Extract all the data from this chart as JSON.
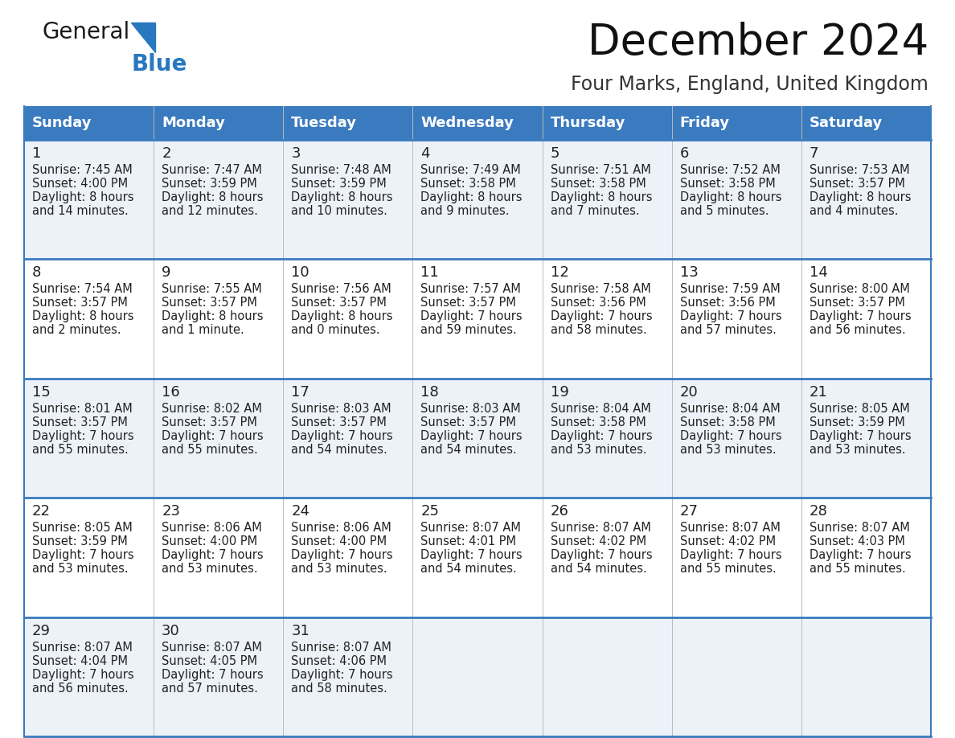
{
  "title": "December 2024",
  "subtitle": "Four Marks, England, United Kingdom",
  "header_bg_color": "#3a7abf",
  "header_text_color": "#ffffff",
  "row_bg_even": "#edf2f9",
  "row_bg_odd": "#ffffff",
  "border_color": "#3a7abf",
  "text_color": "#222222",
  "day_names": [
    "Sunday",
    "Monday",
    "Tuesday",
    "Wednesday",
    "Thursday",
    "Friday",
    "Saturday"
  ],
  "days": [
    {
      "date": 1,
      "sunrise": "7:45 AM",
      "sunset": "4:00 PM",
      "daylight_hours": 8,
      "daylight_minutes": 14
    },
    {
      "date": 2,
      "sunrise": "7:47 AM",
      "sunset": "3:59 PM",
      "daylight_hours": 8,
      "daylight_minutes": 12
    },
    {
      "date": 3,
      "sunrise": "7:48 AM",
      "sunset": "3:59 PM",
      "daylight_hours": 8,
      "daylight_minutes": 10
    },
    {
      "date": 4,
      "sunrise": "7:49 AM",
      "sunset": "3:58 PM",
      "daylight_hours": 8,
      "daylight_minutes": 9
    },
    {
      "date": 5,
      "sunrise": "7:51 AM",
      "sunset": "3:58 PM",
      "daylight_hours": 8,
      "daylight_minutes": 7
    },
    {
      "date": 6,
      "sunrise": "7:52 AM",
      "sunset": "3:58 PM",
      "daylight_hours": 8,
      "daylight_minutes": 5
    },
    {
      "date": 7,
      "sunrise": "7:53 AM",
      "sunset": "3:57 PM",
      "daylight_hours": 8,
      "daylight_minutes": 4
    },
    {
      "date": 8,
      "sunrise": "7:54 AM",
      "sunset": "3:57 PM",
      "daylight_hours": 8,
      "daylight_minutes": 2
    },
    {
      "date": 9,
      "sunrise": "7:55 AM",
      "sunset": "3:57 PM",
      "daylight_hours": 8,
      "daylight_minutes": 1
    },
    {
      "date": 10,
      "sunrise": "7:56 AM",
      "sunset": "3:57 PM",
      "daylight_hours": 8,
      "daylight_minutes": 0
    },
    {
      "date": 11,
      "sunrise": "7:57 AM",
      "sunset": "3:57 PM",
      "daylight_hours": 7,
      "daylight_minutes": 59
    },
    {
      "date": 12,
      "sunrise": "7:58 AM",
      "sunset": "3:56 PM",
      "daylight_hours": 7,
      "daylight_minutes": 58
    },
    {
      "date": 13,
      "sunrise": "7:59 AM",
      "sunset": "3:56 PM",
      "daylight_hours": 7,
      "daylight_minutes": 57
    },
    {
      "date": 14,
      "sunrise": "8:00 AM",
      "sunset": "3:57 PM",
      "daylight_hours": 7,
      "daylight_minutes": 56
    },
    {
      "date": 15,
      "sunrise": "8:01 AM",
      "sunset": "3:57 PM",
      "daylight_hours": 7,
      "daylight_minutes": 55
    },
    {
      "date": 16,
      "sunrise": "8:02 AM",
      "sunset": "3:57 PM",
      "daylight_hours": 7,
      "daylight_minutes": 55
    },
    {
      "date": 17,
      "sunrise": "8:03 AM",
      "sunset": "3:57 PM",
      "daylight_hours": 7,
      "daylight_minutes": 54
    },
    {
      "date": 18,
      "sunrise": "8:03 AM",
      "sunset": "3:57 PM",
      "daylight_hours": 7,
      "daylight_minutes": 54
    },
    {
      "date": 19,
      "sunrise": "8:04 AM",
      "sunset": "3:58 PM",
      "daylight_hours": 7,
      "daylight_minutes": 53
    },
    {
      "date": 20,
      "sunrise": "8:04 AM",
      "sunset": "3:58 PM",
      "daylight_hours": 7,
      "daylight_minutes": 53
    },
    {
      "date": 21,
      "sunrise": "8:05 AM",
      "sunset": "3:59 PM",
      "daylight_hours": 7,
      "daylight_minutes": 53
    },
    {
      "date": 22,
      "sunrise": "8:05 AM",
      "sunset": "3:59 PM",
      "daylight_hours": 7,
      "daylight_minutes": 53
    },
    {
      "date": 23,
      "sunrise": "8:06 AM",
      "sunset": "4:00 PM",
      "daylight_hours": 7,
      "daylight_minutes": 53
    },
    {
      "date": 24,
      "sunrise": "8:06 AM",
      "sunset": "4:00 PM",
      "daylight_hours": 7,
      "daylight_minutes": 53
    },
    {
      "date": 25,
      "sunrise": "8:07 AM",
      "sunset": "4:01 PM",
      "daylight_hours": 7,
      "daylight_minutes": 54
    },
    {
      "date": 26,
      "sunrise": "8:07 AM",
      "sunset": "4:02 PM",
      "daylight_hours": 7,
      "daylight_minutes": 54
    },
    {
      "date": 27,
      "sunrise": "8:07 AM",
      "sunset": "4:02 PM",
      "daylight_hours": 7,
      "daylight_minutes": 55
    },
    {
      "date": 28,
      "sunrise": "8:07 AM",
      "sunset": "4:03 PM",
      "daylight_hours": 7,
      "daylight_minutes": 55
    },
    {
      "date": 29,
      "sunrise": "8:07 AM",
      "sunset": "4:04 PM",
      "daylight_hours": 7,
      "daylight_minutes": 56
    },
    {
      "date": 30,
      "sunrise": "8:07 AM",
      "sunset": "4:05 PM",
      "daylight_hours": 7,
      "daylight_minutes": 57
    },
    {
      "date": 31,
      "sunrise": "8:07 AM",
      "sunset": "4:06 PM",
      "daylight_hours": 7,
      "daylight_minutes": 58
    }
  ],
  "generalblue_dark_color": "#1a1a1a",
  "generalblue_blue_color": "#2878c0",
  "title_fontsize": 38,
  "subtitle_fontsize": 17,
  "cell_text_fontsize": 10.5,
  "date_fontsize": 13,
  "header_fontsize": 13,
  "logo_fontsize": 20
}
